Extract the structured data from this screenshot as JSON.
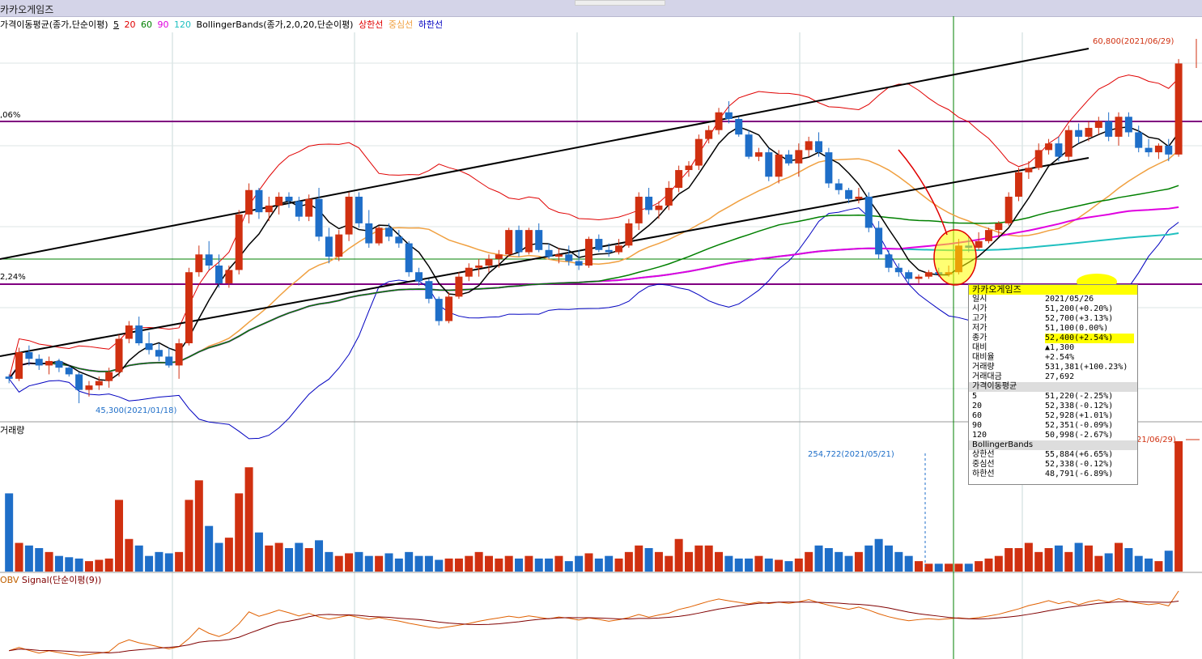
{
  "window": {
    "title": "카카오게임즈"
  },
  "legend": {
    "ma_title": "가격이동평균(종가,단순이평)",
    "ma_periods": [
      {
        "label": "5",
        "color": "#000000"
      },
      {
        "label": "20",
        "color": "#e00000"
      },
      {
        "label": "60",
        "color": "#008000"
      },
      {
        "label": "90",
        "color": "#e000e0"
      },
      {
        "label": "120",
        "color": "#20c0c0"
      }
    ],
    "bb_title": "BollingerBands(종가,2,0,20,단순이평)",
    "bb_upper": "상한선",
    "bb_mid": "중심선",
    "bb_lower": "하한선",
    "bb_upper_color": "#e00000",
    "bb_mid_color": "#f0a040",
    "bb_lower_color": "#0000c0"
  },
  "price_labels": {
    "high": "60,800(2021/06/29)",
    "low": "45,300(2021/01/18)",
    "level_upper": ",06%",
    "level_lower": "2,24%"
  },
  "volume": {
    "title": "거래량",
    "max_label": "254,722(2021/05/21)",
    "right_label": "21/06/29)"
  },
  "obv": {
    "title": "OBV",
    "signal": "Signal(단순이평(9))"
  },
  "tooltip": {
    "name": "카카오게임즈",
    "rows": [
      {
        "k": "일시",
        "v": "2021/05/26"
      },
      {
        "k": "시가",
        "v": "51,200(+0.20%)"
      },
      {
        "k": "고가",
        "v": "52,700(+3.13%)"
      },
      {
        "k": "저가",
        "v": "51,100(0.00%)"
      },
      {
        "k": "종가",
        "v": "52,400(+2.54%)"
      },
      {
        "k": "대비",
        "v": "▲1,300"
      },
      {
        "k": "대비율",
        "v": "+2.54%"
      },
      {
        "k": "거래량",
        "v": "531,381(+100.23%)"
      },
      {
        "k": "거래대금",
        "v": "27,692"
      }
    ],
    "ma_section": "가격이동평균",
    "ma_rows": [
      {
        "k": "5",
        "v": "51,220(-2.25%)"
      },
      {
        "k": "20",
        "v": "52,338(-0.12%)"
      },
      {
        "k": "60",
        "v": "52,928(+1.01%)"
      },
      {
        "k": "90",
        "v": "52,351(-0.09%)"
      },
      {
        "k": "120",
        "v": "50,998(-2.67%)"
      }
    ],
    "bb_section": "BollingerBands",
    "bb_rows": [
      {
        "k": "상한선",
        "v": "55,884(+6.65%)"
      },
      {
        "k": "중심선",
        "v": "52,338(-0.12%)"
      },
      {
        "k": "하한선",
        "v": "48,791(-6.89%)"
      }
    ]
  },
  "colors": {
    "up": "#d03010",
    "down": "#1e6ec8",
    "grid": "#c8d8d8",
    "crosshair": "#008000"
  },
  "chart_data": {
    "type": "candlestick",
    "candles": [
      [
        46.5,
        46.6,
        46.2,
        46.4
      ],
      [
        46.4,
        47.8,
        46.3,
        47.6
      ],
      [
        47.6,
        47.9,
        47.0,
        47.3
      ],
      [
        47.3,
        47.5,
        46.8,
        47.0
      ],
      [
        47.0,
        47.4,
        46.6,
        47.2
      ],
      [
        47.2,
        47.3,
        46.7,
        46.9
      ],
      [
        46.9,
        47.0,
        46.5,
        46.6
      ],
      [
        46.6,
        46.7,
        45.3,
        45.9
      ],
      [
        45.9,
        46.3,
        45.6,
        46.1
      ],
      [
        46.1,
        46.5,
        45.9,
        46.3
      ],
      [
        46.3,
        46.9,
        46.0,
        46.7
      ],
      [
        46.7,
        48.4,
        46.5,
        48.2
      ],
      [
        48.2,
        49.0,
        48.0,
        48.8
      ],
      [
        48.8,
        49.2,
        47.9,
        48.0
      ],
      [
        48.0,
        48.5,
        47.5,
        47.7
      ],
      [
        47.7,
        48.0,
        47.2,
        47.4
      ],
      [
        47.4,
        47.8,
        46.9,
        47.0
      ],
      [
        47.0,
        48.2,
        46.4,
        48.0
      ],
      [
        48.0,
        51.4,
        47.9,
        51.2
      ],
      [
        51.2,
        52.4,
        51.0,
        52.0
      ],
      [
        52.0,
        52.6,
        51.3,
        51.5
      ],
      [
        51.5,
        52.0,
        50.5,
        50.7
      ],
      [
        50.7,
        51.5,
        50.5,
        51.3
      ],
      [
        51.3,
        54.0,
        51.1,
        53.8
      ],
      [
        53.8,
        55.2,
        53.4,
        54.9
      ],
      [
        54.9,
        55.0,
        53.6,
        53.9
      ],
      [
        53.9,
        54.6,
        53.5,
        54.2
      ],
      [
        54.2,
        54.8,
        53.8,
        54.6
      ],
      [
        54.6,
        54.8,
        54.1,
        54.4
      ],
      [
        54.4,
        54.6,
        53.5,
        53.7
      ],
      [
        53.7,
        54.7,
        53.5,
        54.5
      ],
      [
        54.5,
        55.0,
        52.6,
        52.8
      ],
      [
        52.8,
        53.2,
        51.6,
        51.9
      ],
      [
        51.9,
        53.1,
        51.7,
        52.9
      ],
      [
        52.9,
        54.8,
        52.6,
        54.6
      ],
      [
        54.6,
        54.8,
        53.2,
        53.4
      ],
      [
        53.4,
        54.0,
        52.3,
        52.5
      ],
      [
        52.5,
        53.3,
        52.4,
        53.2
      ],
      [
        53.2,
        53.4,
        52.6,
        52.8
      ],
      [
        52.8,
        53.1,
        52.3,
        52.5
      ],
      [
        52.5,
        52.6,
        51.0,
        51.2
      ],
      [
        51.2,
        51.4,
        50.6,
        50.8
      ],
      [
        50.8,
        50.9,
        49.8,
        50.0
      ],
      [
        50.0,
        50.1,
        48.8,
        49.0
      ],
      [
        49.0,
        50.3,
        48.9,
        50.1
      ],
      [
        50.1,
        51.2,
        50.0,
        51.0
      ],
      [
        51.0,
        51.6,
        50.8,
        51.4
      ],
      [
        51.4,
        51.8,
        51.0,
        51.5
      ],
      [
        51.5,
        52.0,
        51.2,
        51.8
      ],
      [
        51.8,
        52.2,
        51.4,
        52.0
      ],
      [
        52.0,
        53.2,
        51.9,
        53.1
      ],
      [
        53.1,
        53.3,
        51.9,
        52.1
      ],
      [
        52.1,
        53.2,
        52.0,
        53.1
      ],
      [
        53.1,
        53.4,
        52.1,
        52.2
      ],
      [
        52.2,
        52.5,
        51.8,
        51.9
      ],
      [
        51.9,
        52.3,
        51.6,
        52.0
      ],
      [
        52.0,
        52.4,
        51.5,
        51.7
      ],
      [
        51.7,
        52.2,
        51.3,
        51.5
      ],
      [
        51.5,
        52.8,
        51.4,
        52.7
      ],
      [
        52.7,
        52.9,
        52.1,
        52.2
      ],
      [
        52.2,
        52.5,
        51.9,
        52.1
      ],
      [
        52.1,
        52.7,
        52.0,
        52.4
      ],
      [
        52.4,
        53.6,
        52.3,
        53.4
      ],
      [
        53.4,
        54.8,
        53.1,
        54.6
      ],
      [
        54.6,
        55.0,
        53.8,
        54.0
      ],
      [
        54.0,
        54.4,
        53.6,
        54.2
      ],
      [
        54.2,
        55.3,
        54.0,
        55.0
      ],
      [
        55.0,
        56.0,
        54.8,
        55.8
      ],
      [
        55.8,
        56.2,
        55.5,
        56.0
      ],
      [
        56.0,
        57.4,
        55.8,
        57.2
      ],
      [
        57.2,
        57.8,
        57.0,
        57.6
      ],
      [
        57.6,
        58.6,
        57.4,
        58.4
      ],
      [
        58.4,
        58.9,
        57.9,
        58.1
      ],
      [
        58.1,
        58.2,
        57.3,
        57.4
      ],
      [
        57.4,
        57.6,
        56.3,
        56.4
      ],
      [
        56.4,
        56.8,
        56.2,
        56.6
      ],
      [
        56.6,
        56.8,
        55.3,
        55.5
      ],
      [
        55.5,
        56.7,
        55.2,
        56.5
      ],
      [
        56.5,
        56.7,
        56.0,
        56.1
      ],
      [
        56.1,
        57.0,
        55.5,
        56.7
      ],
      [
        56.7,
        57.3,
        56.4,
        57.1
      ],
      [
        57.1,
        57.5,
        56.4,
        56.6
      ],
      [
        56.6,
        56.8,
        55.0,
        55.2
      ],
      [
        55.2,
        55.4,
        54.7,
        54.9
      ],
      [
        54.9,
        55.0,
        54.3,
        54.5
      ],
      [
        54.5,
        55.0,
        54.3,
        54.6
      ],
      [
        54.6,
        54.8,
        53.0,
        53.2
      ],
      [
        53.2,
        53.5,
        51.8,
        52.0
      ],
      [
        52.0,
        52.2,
        51.2,
        51.4
      ],
      [
        51.4,
        51.6,
        51.0,
        51.2
      ],
      [
        51.2,
        51.3,
        50.7,
        50.9
      ],
      [
        50.9,
        51.1,
        50.7,
        51.0
      ],
      [
        51.0,
        51.3,
        50.9,
        51.2
      ],
      [
        51.2,
        51.4,
        51.0,
        51.1
      ],
      [
        51.1,
        51.5,
        51.0,
        51.2
      ],
      [
        51.2,
        52.7,
        51.1,
        52.4
      ],
      [
        52.4,
        52.8,
        52.1,
        52.3
      ],
      [
        52.3,
        53.0,
        52.2,
        52.6
      ],
      [
        52.6,
        53.2,
        52.5,
        53.1
      ],
      [
        53.1,
        53.5,
        52.8,
        53.4
      ],
      [
        53.4,
        54.8,
        53.3,
        54.6
      ],
      [
        54.6,
        55.9,
        54.4,
        55.7
      ],
      [
        55.7,
        56.2,
        55.4,
        55.9
      ],
      [
        55.9,
        57.0,
        55.8,
        56.7
      ],
      [
        56.7,
        57.2,
        56.5,
        57.0
      ],
      [
        57.0,
        57.3,
        56.2,
        56.4
      ],
      [
        56.4,
        57.8,
        56.2,
        57.6
      ],
      [
        57.6,
        57.9,
        57.0,
        57.3
      ],
      [
        57.3,
        58.0,
        57.1,
        57.7
      ],
      [
        57.7,
        58.2,
        57.4,
        58.0
      ],
      [
        58.0,
        58.4,
        57.1,
        57.3
      ],
      [
        57.3,
        58.4,
        56.9,
        58.2
      ],
      [
        58.2,
        58.4,
        57.3,
        57.5
      ],
      [
        57.5,
        57.8,
        56.6,
        56.8
      ],
      [
        56.8,
        57.2,
        56.4,
        56.6
      ],
      [
        56.6,
        57.0,
        56.3,
        56.9
      ],
      [
        56.9,
        57.2,
        56.2,
        56.5
      ],
      [
        56.5,
        60.8,
        56.4,
        60.6
      ]
    ],
    "volume": [
      60,
      22,
      20,
      18,
      15,
      12,
      11,
      10,
      8,
      9,
      10,
      55,
      25,
      20,
      12,
      15,
      14,
      15,
      55,
      70,
      35,
      22,
      26,
      60,
      80,
      30,
      20,
      22,
      18,
      22,
      18,
      24,
      15,
      12,
      14,
      15,
      12,
      12,
      14,
      10,
      15,
      12,
      12,
      9,
      10,
      10,
      12,
      15,
      12,
      10,
      12,
      10,
      12,
      10,
      10,
      12,
      8,
      12,
      14,
      10,
      12,
      10,
      15,
      20,
      18,
      15,
      12,
      25,
      15,
      20,
      20,
      15,
      12,
      10,
      10,
      12,
      10,
      9,
      8,
      10,
      15,
      20,
      18,
      15,
      12,
      15,
      20,
      25,
      20,
      15,
      12,
      8,
      6,
      6,
      6,
      6,
      6,
      8,
      10,
      12,
      18,
      18,
      22,
      15,
      18,
      20,
      15,
      22,
      20,
      12,
      14,
      22,
      18,
      12,
      10,
      8,
      16,
      100
    ],
    "title": "카카오게임즈"
  }
}
